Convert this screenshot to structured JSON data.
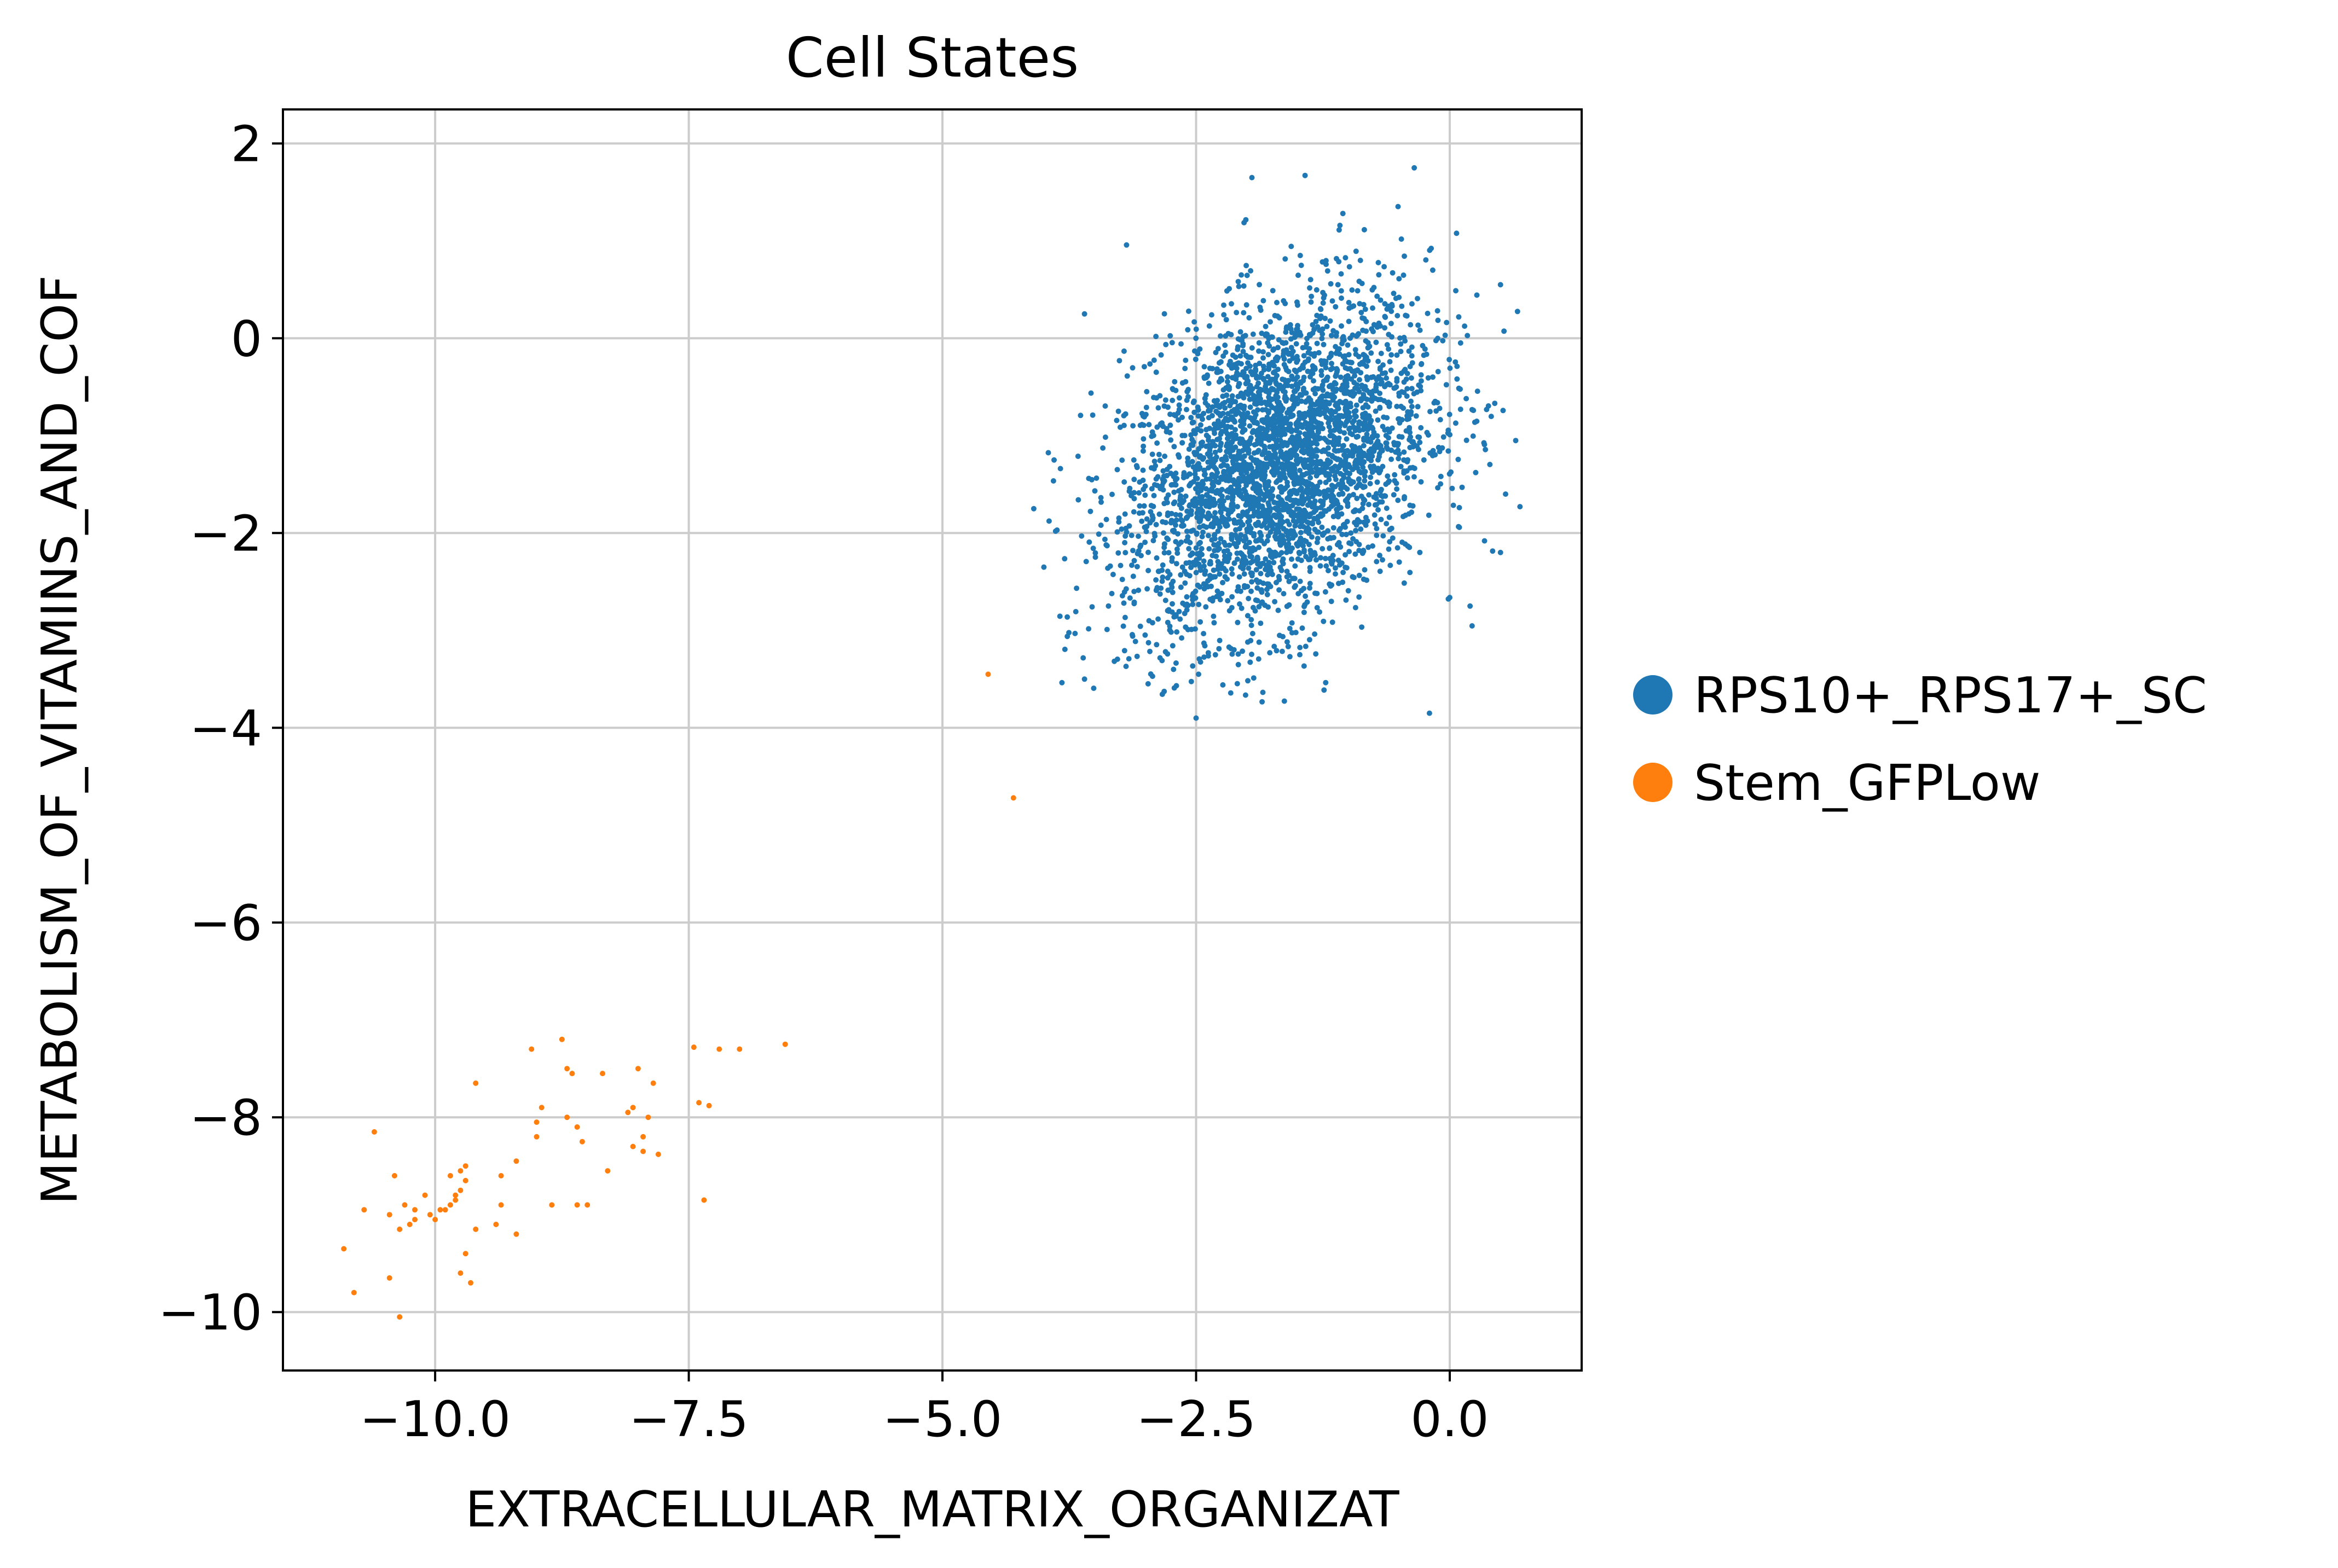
{
  "chart_data": {
    "type": "scatter",
    "title": "Cell States",
    "xlabel": "EXTRACELLULAR_MATRIX_ORGANIZAT",
    "ylabel": "METABOLISM_OF_VITAMINS_AND_COF",
    "xlim": [
      -11.5,
      1.3
    ],
    "ylim": [
      -10.6,
      2.35
    ],
    "x_ticks": [
      -10.0,
      -7.5,
      -5.0,
      -2.5,
      0.0
    ],
    "x_tick_labels": [
      "−10.0",
      "−7.5",
      "−5.0",
      "−2.5",
      "0.0"
    ],
    "y_ticks": [
      2,
      0,
      -2,
      -4,
      -6,
      -8,
      -10
    ],
    "y_tick_labels": [
      "2",
      "0",
      "−2",
      "−4",
      "−6",
      "−8",
      "−10"
    ],
    "grid": true,
    "legend_position": "right",
    "series": [
      {
        "name": "RPS10+_RPS17+_SC",
        "color": "#1f77b4",
        "n_points": 3500,
        "center": [
          -1.7,
          -1.3
        ],
        "spread": [
          0.75,
          0.85
        ],
        "x_range": [
          -4.0,
          0.7
        ],
        "y_range": [
          -3.9,
          1.75
        ],
        "notable_points": [
          [
            -3.6,
            0.25
          ],
          [
            -1.95,
            1.65
          ],
          [
            -0.35,
            1.75
          ],
          [
            0.5,
            0.55
          ],
          [
            0.65,
            -1.05
          ],
          [
            0.55,
            -1.6
          ],
          [
            0.5,
            -2.2
          ],
          [
            0.2,
            -2.75
          ],
          [
            -0.2,
            -3.85
          ],
          [
            -2.5,
            -3.9
          ],
          [
            -3.6,
            -3.5
          ],
          [
            -4.0,
            -2.35
          ],
          [
            -4.1,
            -1.75
          ],
          [
            -3.9,
            -1.25
          ]
        ]
      },
      {
        "name": "Stem_GFPLow",
        "color": "#ff7f0e",
        "points": [
          [
            -4.55,
            -3.45
          ],
          [
            -4.3,
            -4.72
          ],
          [
            -6.55,
            -7.25
          ],
          [
            -7.2,
            -7.3
          ],
          [
            -7.45,
            -7.28
          ],
          [
            -7.0,
            -7.3
          ],
          [
            -7.4,
            -7.85
          ],
          [
            -7.3,
            -7.88
          ],
          [
            -7.35,
            -8.85
          ],
          [
            -7.85,
            -7.65
          ],
          [
            -7.9,
            -8.0
          ],
          [
            -7.95,
            -8.2
          ],
          [
            -7.95,
            -8.35
          ],
          [
            -7.8,
            -8.38
          ],
          [
            -8.0,
            -7.5
          ],
          [
            -8.05,
            -7.9
          ],
          [
            -8.1,
            -7.95
          ],
          [
            -8.05,
            -8.3
          ],
          [
            -8.35,
            -7.55
          ],
          [
            -8.3,
            -8.55
          ],
          [
            -8.6,
            -8.1
          ],
          [
            -8.55,
            -8.25
          ],
          [
            -8.5,
            -8.9
          ],
          [
            -8.6,
            -8.9
          ],
          [
            -8.75,
            -7.2
          ],
          [
            -8.7,
            -7.5
          ],
          [
            -8.65,
            -7.55
          ],
          [
            -8.7,
            -8.0
          ],
          [
            -8.85,
            -8.9
          ],
          [
            -8.95,
            -7.9
          ],
          [
            -9.05,
            -7.3
          ],
          [
            -9.0,
            -8.2
          ],
          [
            -9.0,
            -8.05
          ],
          [
            -9.2,
            -8.45
          ],
          [
            -9.35,
            -8.6
          ],
          [
            -9.35,
            -8.9
          ],
          [
            -9.2,
            -9.2
          ],
          [
            -9.4,
            -9.1
          ],
          [
            -9.6,
            -7.65
          ],
          [
            -9.6,
            -9.15
          ],
          [
            -9.7,
            -8.5
          ],
          [
            -9.75,
            -8.55
          ],
          [
            -9.7,
            -8.65
          ],
          [
            -9.75,
            -8.75
          ],
          [
            -9.8,
            -8.8
          ],
          [
            -9.8,
            -8.85
          ],
          [
            -9.85,
            -8.9
          ],
          [
            -9.9,
            -8.95
          ],
          [
            -9.85,
            -8.6
          ],
          [
            -9.7,
            -9.4
          ],
          [
            -9.75,
            -9.6
          ],
          [
            -9.65,
            -9.7
          ],
          [
            -9.95,
            -8.95
          ],
          [
            -10.0,
            -9.05
          ],
          [
            -10.05,
            -9.0
          ],
          [
            -10.1,
            -8.8
          ],
          [
            -10.2,
            -9.05
          ],
          [
            -10.25,
            -9.1
          ],
          [
            -10.2,
            -8.95
          ],
          [
            -10.3,
            -8.9
          ],
          [
            -10.35,
            -9.15
          ],
          [
            -10.45,
            -9.0
          ],
          [
            -10.4,
            -8.6
          ],
          [
            -10.6,
            -8.15
          ],
          [
            -10.7,
            -8.95
          ],
          [
            -10.45,
            -9.65
          ],
          [
            -10.35,
            -10.05
          ],
          [
            -10.9,
            -9.35
          ],
          [
            -10.8,
            -9.8
          ]
        ]
      }
    ]
  }
}
